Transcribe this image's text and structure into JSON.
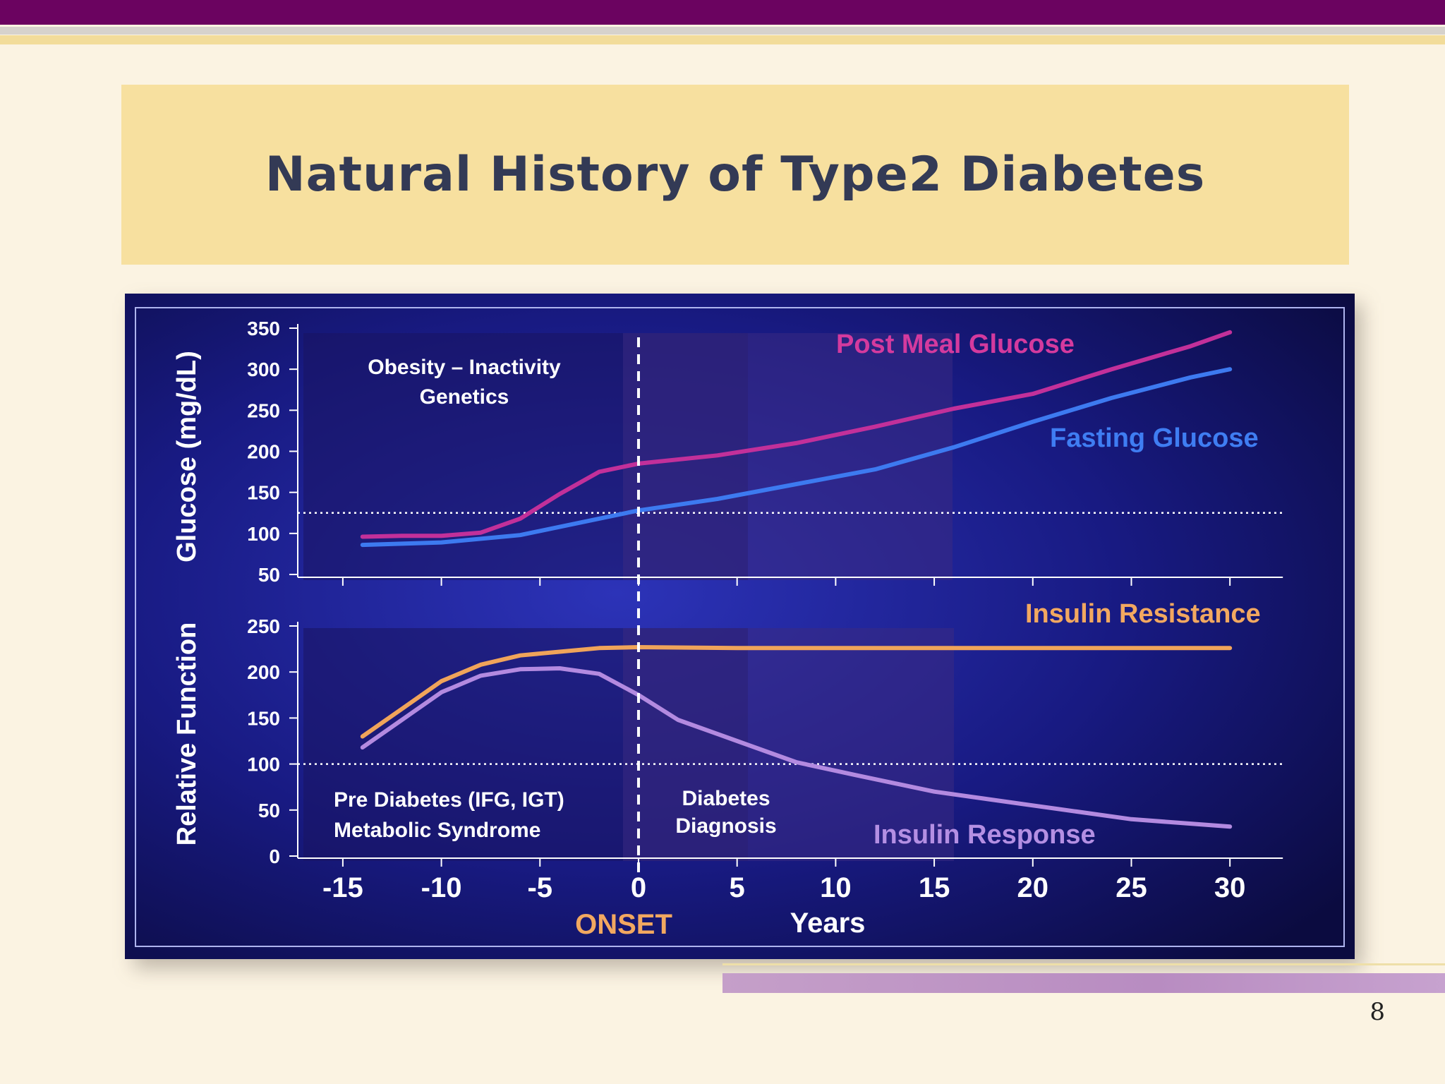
{
  "slide": {
    "title": "Natural History of Type2 Diabetes",
    "page_number": "8"
  },
  "chart_data": [
    {
      "type": "line",
      "panel": "top",
      "ylabel": "Glucose (mg/dL)",
      "ylim": [
        50,
        350
      ],
      "yticks": [
        "350",
        "300",
        "250",
        "200",
        "150",
        "100",
        "50"
      ],
      "reference_line_y": 125,
      "series": [
        {
          "name": "Post Meal Glucose",
          "color": "#c2309a",
          "points": [
            [
              -14,
              96
            ],
            [
              -12,
              97
            ],
            [
              -10,
              97
            ],
            [
              -8,
              101
            ],
            [
              -6,
              118
            ],
            [
              -4,
              148
            ],
            [
              -2,
              175
            ],
            [
              0,
              185
            ],
            [
              4,
              195
            ],
            [
              8,
              210
            ],
            [
              12,
              230
            ],
            [
              16,
              252
            ],
            [
              20,
              270
            ],
            [
              24,
              300
            ],
            [
              28,
              328
            ],
            [
              30,
              345
            ]
          ]
        },
        {
          "name": "Fasting Glucose",
          "color": "#3d7af0",
          "points": [
            [
              -14,
              86
            ],
            [
              -10,
              89
            ],
            [
              -6,
              98
            ],
            [
              -2,
              118
            ],
            [
              0,
              128
            ],
            [
              4,
              142
            ],
            [
              8,
              160
            ],
            [
              12,
              178
            ],
            [
              16,
              205
            ],
            [
              20,
              236
            ],
            [
              24,
              265
            ],
            [
              28,
              290
            ],
            [
              30,
              300
            ]
          ]
        }
      ],
      "annotations": {
        "risk_line1": "Obesity – Inactivity",
        "risk_line2": "Genetics"
      }
    },
    {
      "type": "line",
      "panel": "bottom",
      "ylabel": "Relative Function",
      "ylim": [
        0,
        250
      ],
      "yticks": [
        "250",
        "200",
        "150",
        "100",
        "50",
        "0"
      ],
      "reference_line_y": 100,
      "xlabel": "Years",
      "xlim": [
        -17,
        33
      ],
      "xticks": [
        "-15",
        "-10",
        "-5",
        "0",
        "5",
        "10",
        "15",
        "20",
        "25",
        "30"
      ],
      "onset_x": 0,
      "onset_label": "ONSET",
      "series": [
        {
          "name": "Insulin Resistance",
          "color": "#f0a45a",
          "points": [
            [
              -14,
              130
            ],
            [
              -12,
              160
            ],
            [
              -10,
              190
            ],
            [
              -8,
              208
            ],
            [
              -6,
              218
            ],
            [
              -4,
              222
            ],
            [
              -2,
              226
            ],
            [
              0,
              227
            ],
            [
              5,
              226
            ],
            [
              10,
              226
            ],
            [
              15,
              226
            ],
            [
              20,
              226
            ],
            [
              25,
              226
            ],
            [
              30,
              226
            ]
          ]
        },
        {
          "name": "Insulin Response",
          "color": "#b38ae0",
          "points": [
            [
              -14,
              118
            ],
            [
              -12,
              148
            ],
            [
              -10,
              178
            ],
            [
              -8,
              196
            ],
            [
              -6,
              203
            ],
            [
              -4,
              204
            ],
            [
              -2,
              198
            ],
            [
              0,
              175
            ],
            [
              2,
              148
            ],
            [
              5,
              125
            ],
            [
              8,
              102
            ],
            [
              11,
              88
            ],
            [
              15,
              70
            ],
            [
              20,
              55
            ],
            [
              25,
              40
            ],
            [
              30,
              32
            ]
          ]
        }
      ],
      "annotations": {
        "prediabetes_line1": "Pre Diabetes (IFG, IGT)",
        "prediabetes_line2": "Metabolic Syndrome",
        "diagnosis_line1": "Diabetes",
        "diagnosis_line2": "Diagnosis"
      }
    }
  ]
}
